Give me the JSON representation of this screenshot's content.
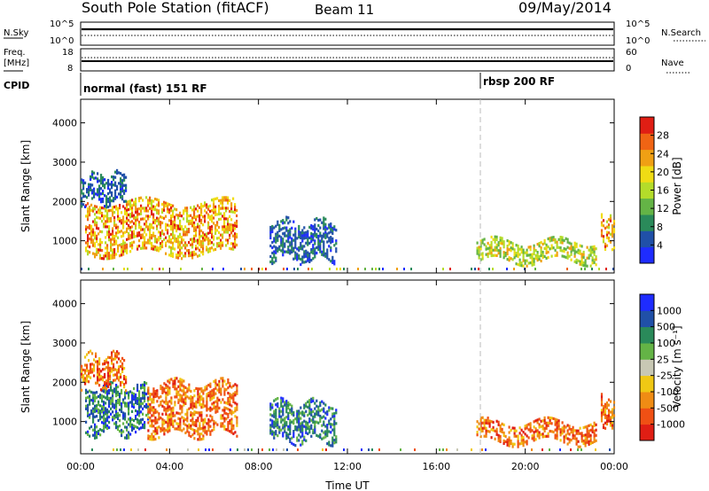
{
  "header": {
    "station": "South Pole Station (fitACF)",
    "beam": "Beam 11",
    "date": "09/May/2014"
  },
  "strip_labels": {
    "nsky": "N.Sky",
    "nsearch": "N.Search",
    "freq_line1": "Freq.",
    "freq_line2": "[MHz]",
    "nave": "Nave",
    "cpid": "CPID",
    "nsky_top": "10^5",
    "nsky_bot": "10^0",
    "nsearch_top": "10^5",
    "nsearch_bot": "10^0",
    "freq_top": "18",
    "freq_bot": "8",
    "nave_top": "60",
    "nave_bot": "0"
  },
  "cpid": [
    {
      "label": "normal (fast) 151 RF",
      "start_hour": 0
    },
    {
      "label": "rbsp 200 RF",
      "start_hour": 18
    }
  ],
  "colors": {
    "power_scale": [
      "#1e2cff",
      "#2050a8",
      "#2a8a5a",
      "#64b446",
      "#b4dc2a",
      "#f0dc14",
      "#f0a014",
      "#f06414",
      "#e01e14"
    ],
    "velocity_scale": [
      "#1e2cff",
      "#2050a8",
      "#2a8a5a",
      "#64b446",
      "#c8c8b4",
      "#f0c814",
      "#f08c14",
      "#f05014",
      "#e01e14"
    ]
  },
  "chart_data": [
    {
      "type": "heatmap",
      "name": "power-panel",
      "ylabel": "Slant Range [km]",
      "xlabel": "Time UT",
      "xlim": [
        0,
        24
      ],
      "ylim": [
        180,
        4600
      ],
      "yticks": [
        "1000",
        "2000",
        "3000",
        "4000"
      ],
      "xticks": [
        "00:00",
        "04:00",
        "08:00",
        "12:00",
        "16:00",
        "20:00",
        "00:00"
      ],
      "colorbar": {
        "label": "Power [dB]",
        "ticks": [
          "4",
          "8",
          "12",
          "16",
          "20",
          "24",
          "28"
        ]
      },
      "echo_regions": [
        {
          "t0": 0.2,
          "t1": 7.0,
          "r0": 700,
          "r1": 2000,
          "level": "high"
        },
        {
          "t0": 0.0,
          "t1": 2.0,
          "r0": 2000,
          "r1": 2700,
          "level": "low"
        },
        {
          "t0": 8.5,
          "t1": 11.5,
          "r0": 500,
          "r1": 1500,
          "level": "low"
        },
        {
          "t0": 17.8,
          "t1": 23.2,
          "r0": 500,
          "r1": 1000,
          "level": "mid"
        },
        {
          "t0": 23.4,
          "t1": 24.0,
          "r0": 900,
          "r1": 1600,
          "level": "high"
        }
      ]
    },
    {
      "type": "heatmap",
      "name": "velocity-panel",
      "ylabel": "Slant Range [km]",
      "xlabel": "Time UT",
      "xlim": [
        0,
        24
      ],
      "ylim": [
        180,
        4600
      ],
      "yticks": [
        "1000",
        "2000",
        "3000",
        "4000"
      ],
      "xticks": [
        "00:00",
        "04:00",
        "08:00",
        "12:00",
        "16:00",
        "20:00",
        "00:00"
      ],
      "colorbar": {
        "label": "Velocity [m s⁻¹]",
        "ticks": [
          "1000",
          "500",
          "100",
          "25",
          "-25",
          "-100",
          "-500",
          "-1000"
        ]
      },
      "echo_regions": [
        {
          "t0": 0.2,
          "t1": 3.0,
          "r0": 700,
          "r1": 1900,
          "level": "towards"
        },
        {
          "t0": 3.0,
          "t1": 7.0,
          "r0": 700,
          "r1": 2000,
          "level": "away"
        },
        {
          "t0": 0.0,
          "t1": 2.0,
          "r0": 1900,
          "r1": 2700,
          "level": "away"
        },
        {
          "t0": 8.5,
          "t1": 11.5,
          "r0": 500,
          "r1": 1500,
          "level": "towards"
        },
        {
          "t0": 17.8,
          "t1": 23.2,
          "r0": 500,
          "r1": 1000,
          "level": "away"
        },
        {
          "t0": 23.4,
          "t1": 24.0,
          "r0": 900,
          "r1": 1600,
          "level": "away"
        }
      ]
    }
  ]
}
